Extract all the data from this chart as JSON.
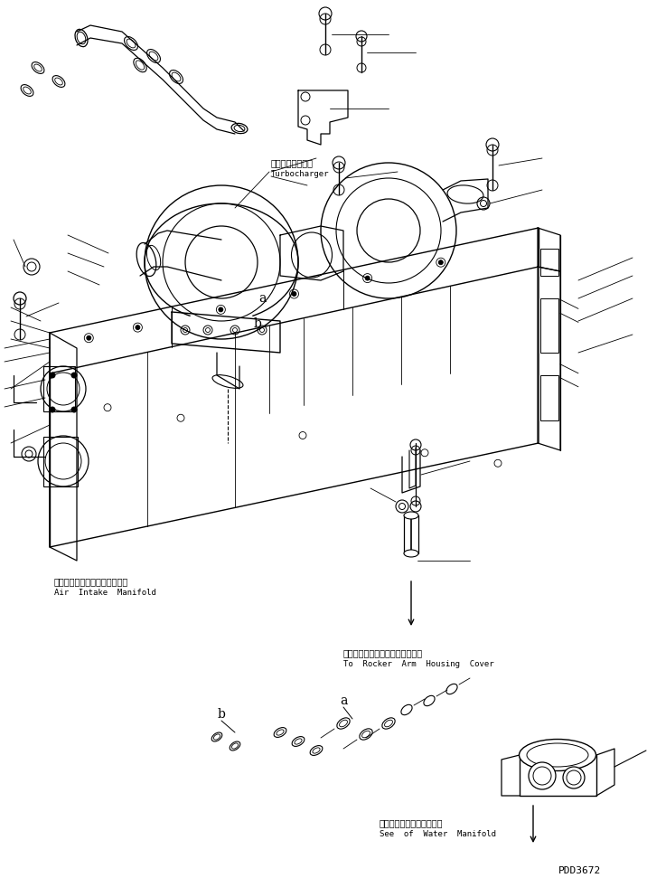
{
  "bg_color": "#ffffff",
  "line_color": "#000000",
  "fig_width": 7.16,
  "fig_height": 9.71,
  "dpi": 100,
  "labels": {
    "turbocharger_jp": "ターボチャージャ",
    "turbocharger_en": "Turbocharger",
    "air_intake_jp": "エアーインテークマニホールド",
    "air_intake_en": "Air  Intake  Manifold",
    "rocker_jp": "ロッカアームハウジングカバーヘ",
    "rocker_en": "To  Rocker  Arm  Housing  Cover",
    "water_jp": "ウォータマニホールド参照",
    "water_en": "See  of  Water  Manifold",
    "part_id": "PDD3672",
    "label_a1": "a",
    "label_b1": "b",
    "label_a2": "a",
    "label_b2": "b"
  },
  "font_sizes": {
    "jp": 7,
    "en": 6.5,
    "part_id": 8,
    "ab_label": 9
  }
}
